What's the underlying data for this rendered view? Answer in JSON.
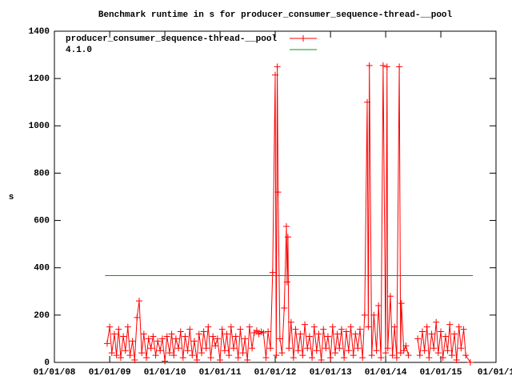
{
  "chart_data": {
    "type": "line",
    "title": "Benchmark runtime in s for producer_consumer_sequence-thread-__pool",
    "ylabel": "s",
    "legend": "top left",
    "grid": false,
    "xlim": [
      "2008-01-01",
      "2016-01-01"
    ],
    "xticks": [
      {
        "value": "2008-01-01",
        "label": "01/01/08"
      },
      {
        "value": "2009-01-01",
        "label": "01/01/09"
      },
      {
        "value": "2010-01-01",
        "label": "01/01/10"
      },
      {
        "value": "2011-01-01",
        "label": "01/01/11"
      },
      {
        "value": "2012-01-01",
        "label": "01/01/12"
      },
      {
        "value": "2013-01-01",
        "label": "01/01/13"
      },
      {
        "value": "2014-01-01",
        "label": "01/01/14"
      },
      {
        "value": "2015-01-01",
        "label": "01/01/15"
      },
      {
        "value": "2016-01-01",
        "label": "01/01/1"
      }
    ],
    "ylim": [
      0,
      1400
    ],
    "yticks": [
      0,
      200,
      400,
      600,
      800,
      1000,
      1200,
      1400
    ],
    "series": [
      {
        "name": "producer_consumer_sequence-thread-__pool",
        "color": "#ff0000",
        "markers": true,
        "x": [
          "2008-12-15",
          "2009-01-01",
          "2009-01-15",
          "2009-02-01",
          "2009-02-15",
          "2009-03-01",
          "2009-03-15",
          "2009-04-01",
          "2009-04-15",
          "2009-05-01",
          "2009-05-15",
          "2009-06-01",
          "2009-06-15",
          "2009-07-01",
          "2009-07-15",
          "2009-08-01",
          "2009-08-15",
          "2009-09-01",
          "2009-09-15",
          "2009-10-01",
          "2009-10-15",
          "2009-11-01",
          "2009-11-15",
          "2009-12-01",
          "2009-12-15",
          "2010-01-01",
          "2010-01-15",
          "2010-02-01",
          "2010-02-15",
          "2010-03-01",
          "2010-03-15",
          "2010-04-01",
          "2010-04-15",
          "2010-05-01",
          "2010-05-15",
          "2010-06-01",
          "2010-06-15",
          "2010-07-01",
          "2010-07-15",
          "2010-08-01",
          "2010-08-15",
          "2010-09-01",
          "2010-09-15",
          "2010-10-01",
          "2010-10-15",
          "2010-11-01",
          "2010-11-15",
          "2010-12-01",
          "2010-12-15",
          "2011-01-01",
          "2011-01-15",
          "2011-02-01",
          "2011-02-15",
          "2011-03-01",
          "2011-03-15",
          "2011-04-01",
          "2011-04-15",
          "2011-05-01",
          "2011-05-15",
          "2011-06-01",
          "2011-06-15",
          "2011-07-01",
          "2011-07-15",
          "2011-08-01",
          "2011-08-15",
          "2011-09-01",
          "2011-09-15",
          "2011-10-01",
          "2011-10-15",
          "2011-11-01",
          "2011-11-15",
          "2011-12-01",
          "2011-12-15",
          "2012-01-01",
          "2012-01-08",
          "2012-01-15",
          "2012-01-20",
          "2012-02-01",
          "2012-02-15",
          "2012-03-01",
          "2012-03-15",
          "2012-03-20",
          "2012-03-25",
          "2012-04-01",
          "2012-04-15",
          "2012-05-01",
          "2012-05-15",
          "2012-06-01",
          "2012-06-15",
          "2012-07-01",
          "2012-07-15",
          "2012-08-01",
          "2012-08-15",
          "2012-09-01",
          "2012-09-15",
          "2012-10-01",
          "2012-10-15",
          "2012-11-01",
          "2012-11-15",
          "2012-12-01",
          "2012-12-15",
          "2013-01-01",
          "2013-01-15",
          "2013-02-01",
          "2013-02-15",
          "2013-03-01",
          "2013-03-15",
          "2013-04-01",
          "2013-04-15",
          "2013-05-01",
          "2013-05-15",
          "2013-06-01",
          "2013-06-15",
          "2013-07-01",
          "2013-07-15",
          "2013-08-01",
          "2013-08-15",
          "2013-09-01",
          "2013-09-08",
          "2013-09-15",
          "2013-10-01",
          "2013-10-15",
          "2013-11-01",
          "2013-11-15",
          "2013-12-01",
          "2013-12-15",
          "2014-01-01",
          "2014-01-10",
          "2014-01-15",
          "2014-02-01",
          "2014-02-15",
          "2014-03-01",
          "2014-03-15",
          "2014-04-01",
          "2014-04-10",
          "2014-04-15",
          "2014-05-01",
          "2014-05-15",
          "2014-06-01",
          "2014-06-15",
          "2014-08-01",
          "2014-08-15",
          "2014-09-01",
          "2014-09-15",
          "2014-10-01",
          "2014-10-15",
          "2014-11-01",
          "2014-11-15",
          "2014-12-01",
          "2014-12-15",
          "2015-01-01",
          "2015-01-15",
          "2015-02-01",
          "2015-02-15",
          "2015-03-01",
          "2015-03-15",
          "2015-04-01",
          "2015-04-15",
          "2015-05-01",
          "2015-05-15",
          "2015-06-01",
          "2015-06-15",
          "2015-07-15"
        ],
        "values": [
          80,
          150,
          40,
          120,
          30,
          140,
          20,
          110,
          50,
          150,
          30,
          90,
          10,
          190,
          260,
          40,
          120,
          20,
          100,
          60,
          110,
          30,
          90,
          50,
          100,
          5,
          110,
          40,
          120,
          30,
          100,
          60,
          130,
          20,
          110,
          50,
          140,
          30,
          90,
          10,
          120,
          40,
          130,
          60,
          150,
          20,
          110,
          70,
          100,
          10,
          140,
          50,
          120,
          30,
          150,
          60,
          110,
          20,
          140,
          40,
          100,
          10,
          150,
          60,
          125,
          135,
          120,
          130,
          125,
          20,
          130,
          60,
          380,
          1215,
          30,
          1250,
          720,
          100,
          40,
          230,
          575,
          340,
          530,
          60,
          170,
          20,
          140,
          50,
          120,
          30,
          160,
          60,
          110,
          20,
          150,
          50,
          120,
          10,
          140,
          60,
          110,
          20,
          150,
          40,
          120,
          60,
          140,
          20,
          130,
          50,
          150,
          30,
          120,
          60,
          140,
          20,
          200,
          1100,
          150,
          1255,
          30,
          200,
          50,
          240,
          20,
          1255,
          40,
          1250,
          60,
          280,
          30,
          150,
          20,
          1250,
          40,
          250,
          50,
          70,
          30,
          null,
          100,
          30,
          130,
          50,
          150,
          20,
          120,
          60,
          170,
          40,
          130,
          20,
          110,
          50,
          160,
          30,
          120,
          10,
          150,
          60,
          140,
          30,
          0
        ]
      },
      {
        "name": "4.1.0",
        "color": "#00a000",
        "markers": false,
        "x": [
          "2008-12-01",
          "2015-08-01"
        ],
        "values": [
          367,
          367
        ]
      }
    ]
  }
}
